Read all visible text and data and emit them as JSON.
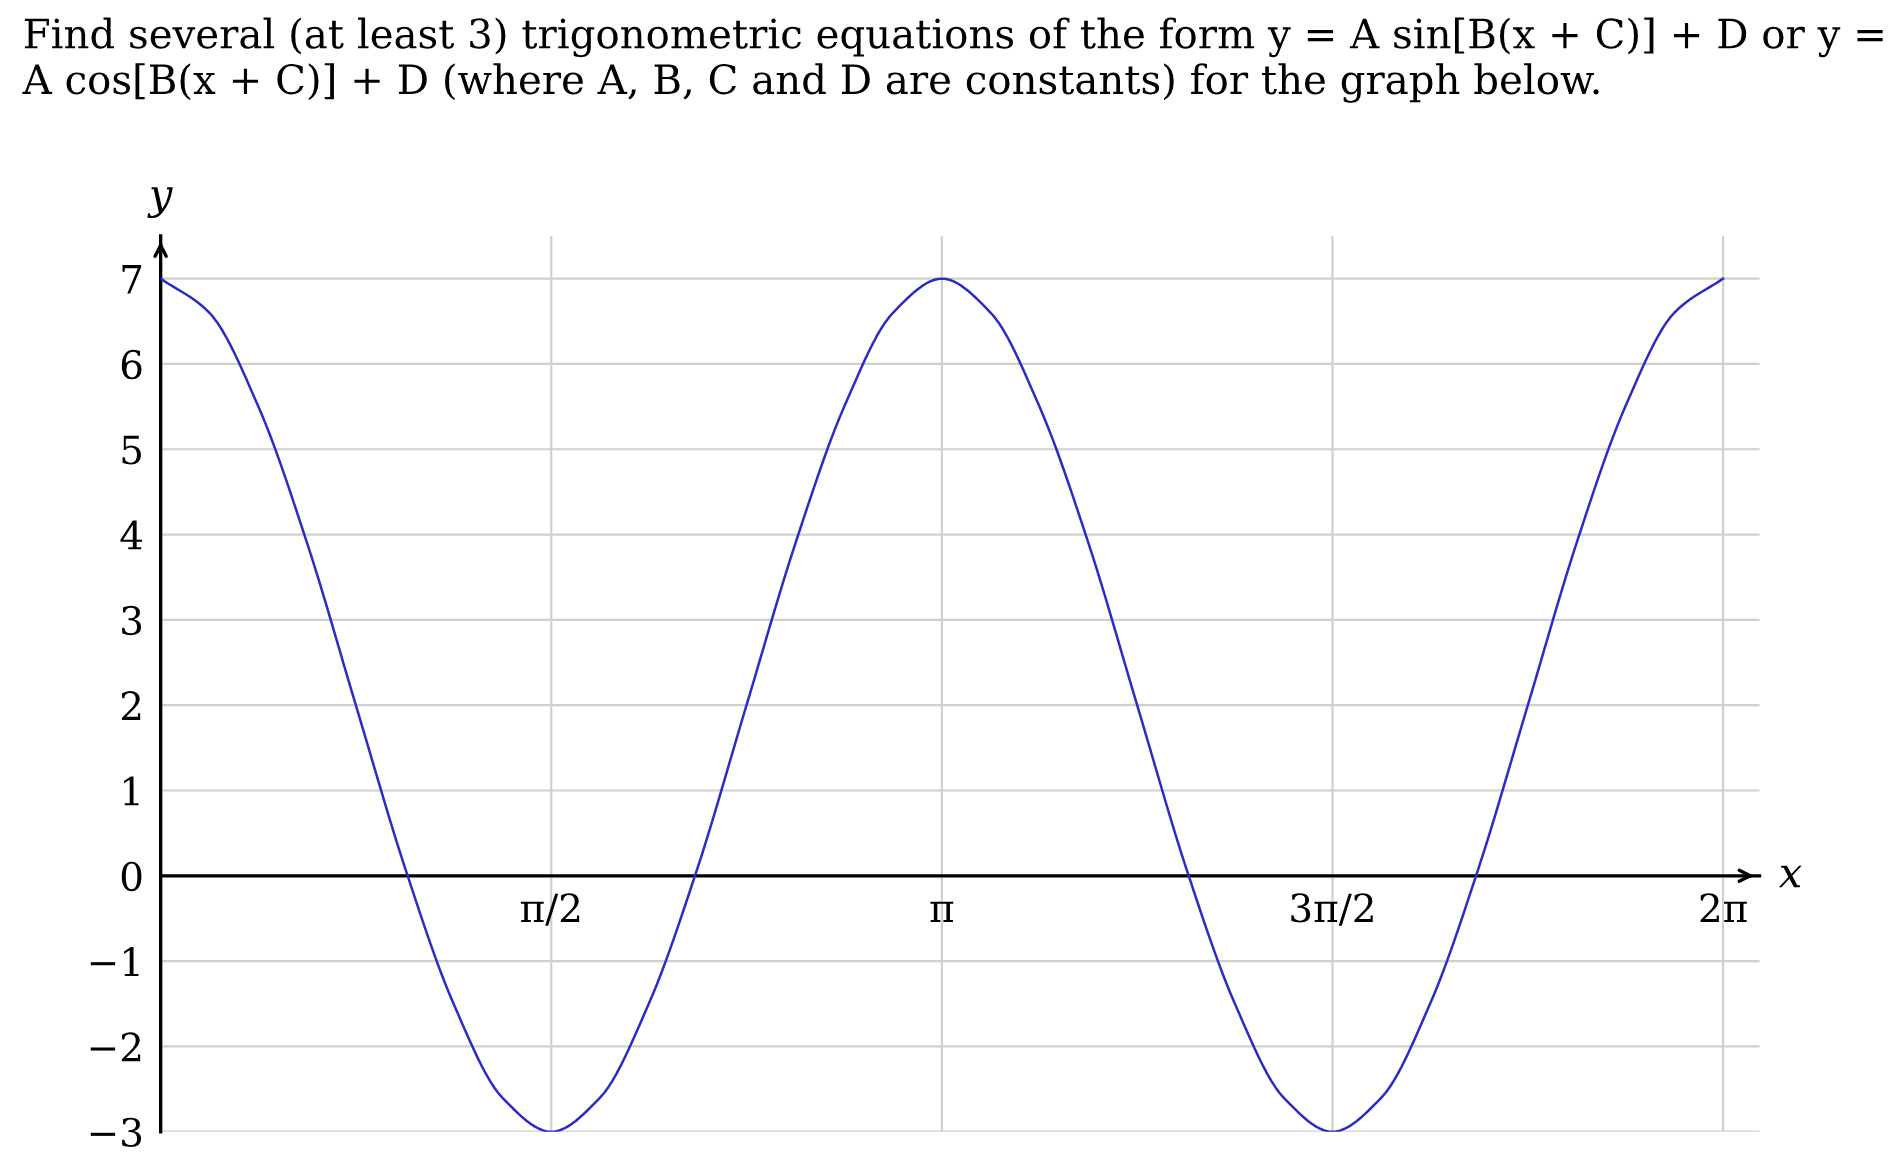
{
  "chart_data": {
    "type": "line",
    "title": "Find several (at least 3) trigonometric equations of the form y = A sin[B(x + C)] + D or y = A cos[B(x + C)] + D (where A, B, C and D are constants) for the graph below.",
    "xlabel": "x",
    "ylabel": "y",
    "x": [
      0,
      0.196,
      0.393,
      0.589,
      0.785,
      0.982,
      1.178,
      1.374,
      1.571,
      1.767,
      1.963,
      2.16,
      2.356,
      2.553,
      2.749,
      2.945,
      3.142,
      3.338,
      3.534,
      3.731,
      3.927,
      4.123,
      4.32,
      4.516,
      4.712,
      4.909,
      5.105,
      5.301,
      5.498,
      5.694,
      5.89,
      6.087,
      6.283
    ],
    "series": [
      {
        "color": "#2b2bc8",
        "values": [
          7,
          6.6,
          5.5,
          3.9,
          2,
          0.1,
          -1.5,
          -2.6,
          -3,
          -2.6,
          -1.5,
          0.1,
          2,
          3.9,
          5.5,
          6.6,
          7,
          6.6,
          5.5,
          3.9,
          2,
          0.1,
          -1.5,
          -2.6,
          -3,
          -2.6,
          -1.5,
          0.1,
          2,
          3.9,
          5.5,
          6.6,
          7
        ]
      }
    ],
    "xlim": [
      0,
      6.43
    ],
    "ylim": [
      -3,
      7.5
    ],
    "xticks": [
      {
        "value": 1.5708,
        "label": "π/2"
      },
      {
        "value": 3.1416,
        "label": "π"
      },
      {
        "value": 4.7124,
        "label": "3π/2"
      },
      {
        "value": 6.2832,
        "label": "2π"
      }
    ],
    "yticks": [
      -3,
      -2,
      -1,
      0,
      1,
      2,
      3,
      4,
      5,
      6,
      7
    ],
    "grid": true,
    "marker": "none",
    "line_style": "solid",
    "legend": false
  }
}
